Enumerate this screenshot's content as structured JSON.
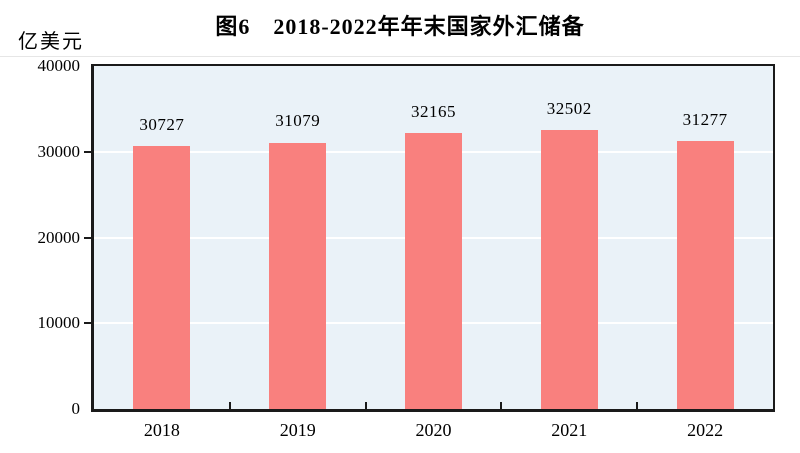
{
  "chart_data": {
    "type": "bar",
    "title": "图6　2018-2022年年末国家外汇储备",
    "ylabel": "亿美元",
    "xlabel": "",
    "categories": [
      "2018",
      "2019",
      "2020",
      "2021",
      "2022"
    ],
    "values": [
      30727,
      31079,
      32165,
      32502,
      31277
    ],
    "data_labels": [
      "30727",
      "31079",
      "32165",
      "32502",
      "31277"
    ],
    "ylim": [
      0,
      40000
    ],
    "yticks": [
      0,
      10000,
      20000,
      30000,
      40000
    ],
    "ytick_labels": [
      "0",
      "10000",
      "20000",
      "30000",
      "40000"
    ],
    "grid": true,
    "legend": false,
    "colors": {
      "bar": "#f9807e",
      "plot_background": "#eaf2f8",
      "gridline": "#ffffff",
      "axis": "#1a1a1a",
      "text": "#000000"
    }
  }
}
